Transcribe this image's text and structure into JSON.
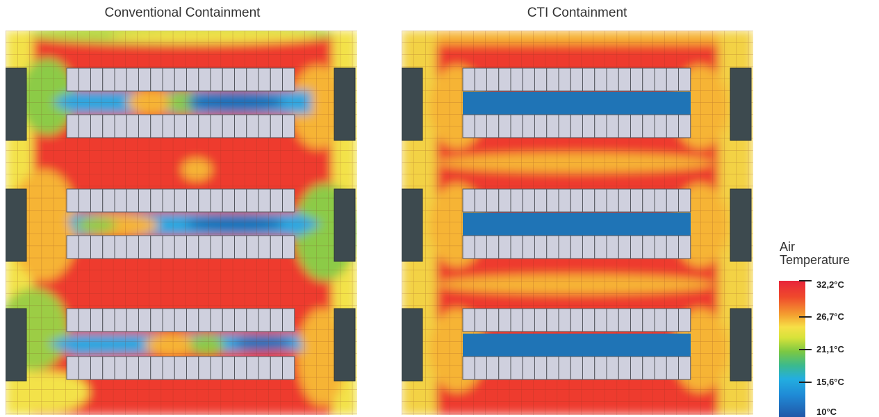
{
  "panels": {
    "left_title": "Conventional Containment",
    "right_title": "CTI Containment"
  },
  "legend": {
    "title_line1": "Air",
    "title_line2": "Temperature",
    "ticks": [
      "32,2°C",
      "26,7°C",
      "21,1°C",
      "15,6°C",
      "10°C"
    ]
  },
  "colors": {
    "hot": "#ee3a2e",
    "warm": "#f6b435",
    "mild": "#f3e24a",
    "cool": "#2fa6df",
    "cold": "#1e6fb8",
    "rack": "#cfd0de",
    "cooling_unit": "#3d4a4f"
  }
}
